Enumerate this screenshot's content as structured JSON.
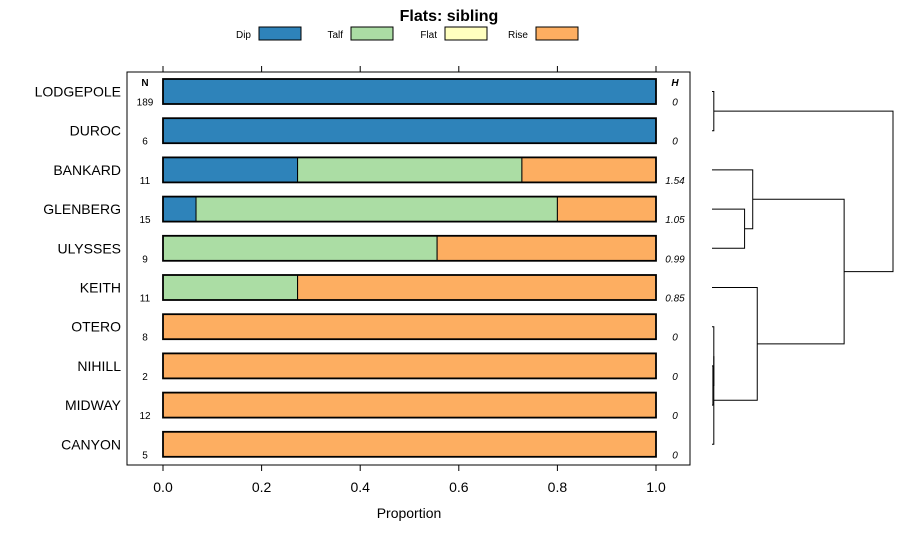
{
  "chart_data": {
    "type": "bar",
    "orientation": "horizontal",
    "stacked": true,
    "title": "Flats: sibling",
    "xlabel": "Proportion",
    "ylabel": "",
    "xlim": [
      0,
      1
    ],
    "x_ticks": [
      "0.0",
      "0.2",
      "0.4",
      "0.6",
      "0.8",
      "1.0"
    ],
    "legend_position": "top",
    "n_header": "N",
    "h_header": "H",
    "series": [
      {
        "name": "Dip",
        "color": "#2e83ba",
        "values": [
          1.0,
          1.0,
          0.273,
          0.067,
          0.0,
          0.0,
          0.0,
          0.0,
          0.0,
          0.0
        ]
      },
      {
        "name": "Talf",
        "color": "#abdda4",
        "values": [
          0.0,
          0.0,
          0.455,
          0.733,
          0.556,
          0.273,
          0.0,
          0.0,
          0.0,
          0.0
        ]
      },
      {
        "name": "Flat",
        "color": "#ffffbf",
        "values": [
          0.0,
          0.0,
          0.0,
          0.0,
          0.0,
          0.0,
          0.0,
          0.0,
          0.0,
          0.0
        ]
      },
      {
        "name": "Rise",
        "color": "#fdae61",
        "values": [
          0.0,
          0.0,
          0.272,
          0.2,
          0.444,
          0.727,
          1.0,
          1.0,
          1.0,
          1.0
        ]
      }
    ],
    "categories": [
      {
        "name": "LODGEPOLE",
        "n": "189",
        "h": "0"
      },
      {
        "name": "DUROC",
        "n": "6",
        "h": "0"
      },
      {
        "name": "BANKARD",
        "n": "11",
        "h": "1.54"
      },
      {
        "name": "GLENBERG",
        "n": "15",
        "h": "1.05"
      },
      {
        "name": "ULYSSES",
        "n": "9",
        "h": "0.99"
      },
      {
        "name": "KEITH",
        "n": "11",
        "h": "0.85"
      },
      {
        "name": "OTERO",
        "n": "8",
        "h": "0"
      },
      {
        "name": "NIHILL",
        "n": "2",
        "h": "0"
      },
      {
        "name": "MIDWAY",
        "n": "12",
        "h": "0"
      },
      {
        "name": "CANYON",
        "n": "5",
        "h": "0"
      }
    ],
    "dendrogram": {
      "merges": [
        {
          "a": 0,
          "b": 1,
          "height": 0.01
        },
        {
          "a": 7,
          "b": 8,
          "height": 0.005
        },
        {
          "a": 6,
          "b": "m1",
          "height": 0.01
        },
        {
          "a": "m2",
          "b": 9,
          "height": 0.01
        },
        {
          "a": 3,
          "b": 4,
          "height": 0.18
        },
        {
          "a": 2,
          "b": "m4",
          "height": 0.225
        },
        {
          "a": 5,
          "b": "m3",
          "height": 0.25
        },
        {
          "a": "m5",
          "b": "m6",
          "height": 0.73
        },
        {
          "a": "m0",
          "b": "m7",
          "height": 1.0
        }
      ]
    }
  }
}
